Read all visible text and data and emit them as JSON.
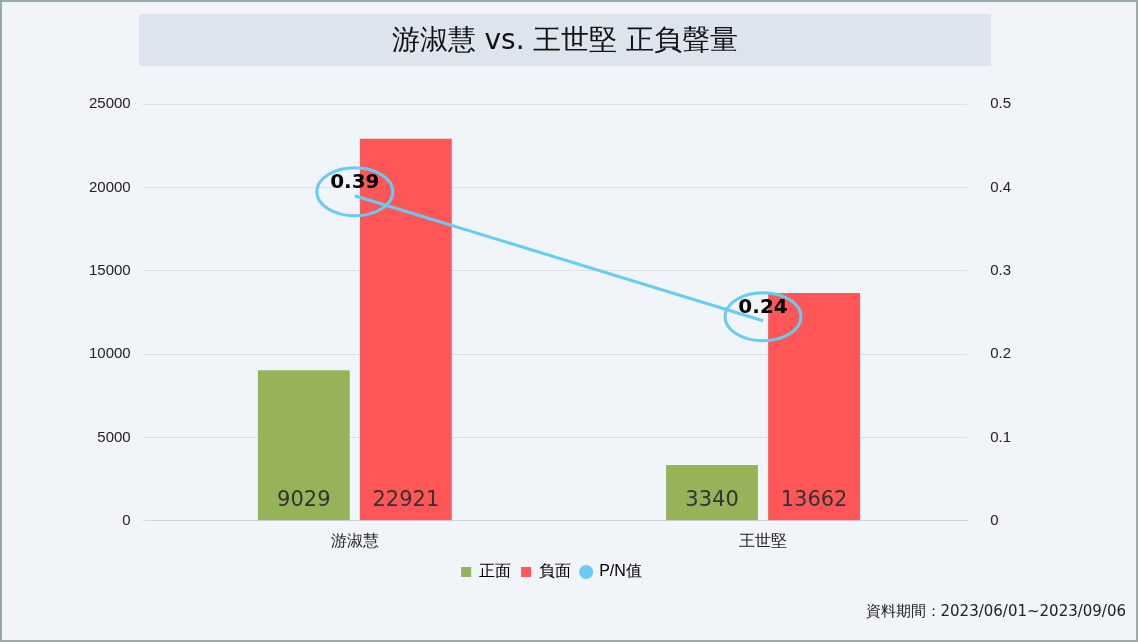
{
  "chart_data": {
    "type": "bar",
    "title": "游淑慧 vs. 王世堅 正負聲量",
    "categories": [
      "游淑慧",
      "王世堅"
    ],
    "series": [
      {
        "name": "正面",
        "color": "#96b35a",
        "values": [
          9029,
          3340
        ]
      },
      {
        "name": "負面",
        "color": "#ff5757",
        "values": [
          22921,
          13662
        ]
      },
      {
        "name": "P/N值",
        "type": "line",
        "axis": "y2",
        "color": "#66ccf2",
        "values": [
          0.39,
          0.24
        ]
      }
    ],
    "ylim": [
      0,
      25000
    ],
    "yticks": [
      0,
      5000,
      10000,
      15000,
      20000,
      25000
    ],
    "y2lim": [
      0,
      0.5
    ],
    "y2ticks": [
      0,
      0.1,
      0.2,
      0.3,
      0.4,
      0.5
    ],
    "grid": "y",
    "legend": "bottom",
    "data_labels": true,
    "annotations": [
      "資料期間：2023/06/01~2023/09/06"
    ]
  }
}
